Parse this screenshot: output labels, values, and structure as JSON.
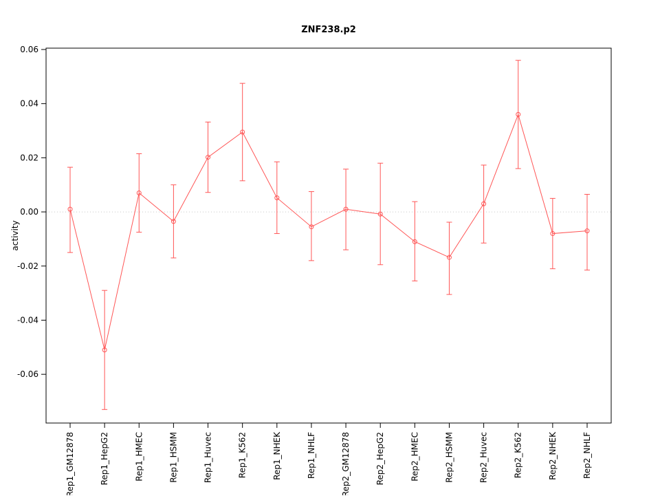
{
  "chart_data": {
    "type": "line",
    "title": "ZNF238.p2",
    "xlabel": "",
    "ylabel": "activity",
    "categories": [
      "Rep1_GM12878",
      "Rep1_HepG2",
      "Rep1_HMEC",
      "Rep1_HSMM",
      "Rep1_Huvec",
      "Rep1_K562",
      "Rep1_NHEK",
      "Rep1_NHLF",
      "Rep2_GM12878",
      "Rep2_HepG2",
      "Rep2_HMEC",
      "Rep2_HSMM",
      "Rep2_Huvec",
      "Rep2_K562",
      "Rep2_NHEK",
      "Rep2_NHLF"
    ],
    "values": [
      0.001,
      -0.051,
      0.007,
      -0.0035,
      0.0202,
      0.0295,
      0.0052,
      -0.0055,
      0.001,
      -0.0008,
      -0.011,
      -0.0168,
      0.003,
      0.036,
      -0.008,
      -0.007
    ],
    "error_low": [
      -0.015,
      -0.073,
      -0.0075,
      -0.017,
      0.0072,
      0.0115,
      -0.008,
      -0.018,
      -0.014,
      -0.0195,
      -0.0255,
      -0.0305,
      -0.0115,
      0.016,
      -0.021,
      -0.0215
    ],
    "error_high": [
      0.0165,
      -0.029,
      0.0215,
      0.01,
      0.0332,
      0.0475,
      0.0185,
      0.0075,
      0.0158,
      0.018,
      0.0038,
      -0.0038,
      0.0173,
      0.056,
      0.005,
      0.0065
    ],
    "yticks": [
      -0.06,
      -0.04,
      -0.02,
      0,
      0.02,
      0.04,
      0.06
    ],
    "ylim": [
      -0.078,
      0.0605
    ],
    "series_color": "#ff5555",
    "axis_color": "#000000",
    "zero_line": true,
    "zero_line_color": "#c8c8c8",
    "grid": "off",
    "legend_position": "none",
    "point_style": "open-circle"
  }
}
